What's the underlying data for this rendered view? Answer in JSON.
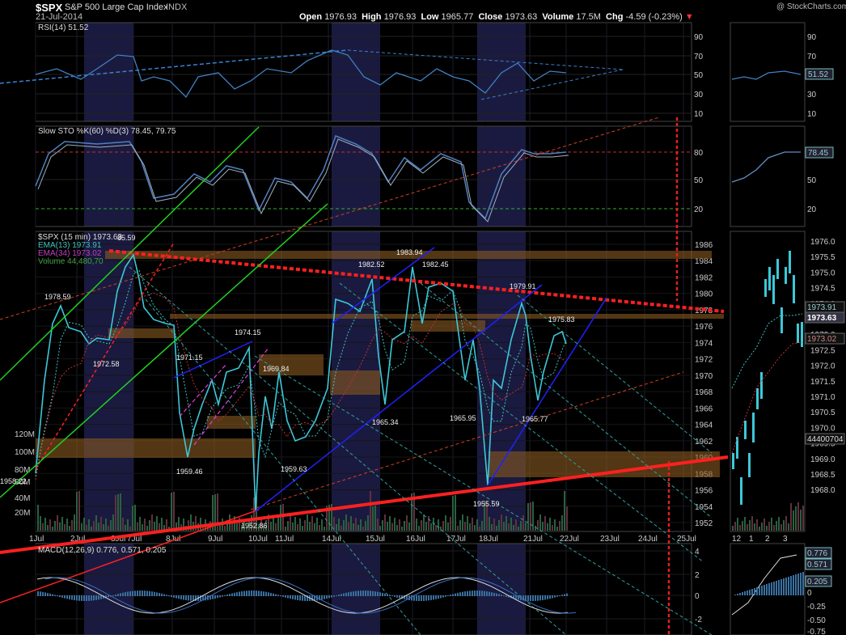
{
  "header": {
    "symbol": "$SPX",
    "name": "S&P 500 Large Cap Index",
    "exchange": "INDX",
    "date": "21-Jul-2014",
    "watermark": "@ StockCharts.com",
    "open_label": "Open",
    "open": "1976.93",
    "high_label": "High",
    "high": "1976.93",
    "low_label": "Low",
    "low": "1965.77",
    "close_label": "Close",
    "close": "1973.63",
    "volume_label": "Volume",
    "volume": "17.5M",
    "chg_label": "Chg",
    "chg": "-4.59 (-0.23%)"
  },
  "colors": {
    "price": "#3cc8d8",
    "ema13": "#40c0c0",
    "ema34": "#c03030",
    "trend_red": "#ff2020",
    "channel_green": "#20d020",
    "channel_blue": "#2020ff",
    "flag_magenta": "#e040e0",
    "resistance_band": "#8a5a20",
    "shade": "#1a1a40"
  },
  "panels": {
    "rsi": {
      "label": "RSI(14) 51.52",
      "ticks": [
        "90",
        "70",
        "50",
        "30",
        "10"
      ],
      "mini_value": "51.52"
    },
    "sto": {
      "label": "Slow STO %K(60) %D(3) 78.45, 79.75",
      "ticks": [
        "80",
        "50",
        "20"
      ],
      "mini_value": "78.45"
    },
    "price": {
      "legend": [
        "$SPX (15 min) 1973.63",
        "EMA(13) 1973.91",
        "EMA(34) 1973.02",
        "Volume 44,480,70"
      ],
      "ticks": [
        "1986",
        "1984",
        "1982",
        "1980",
        "1978",
        "1976",
        "1974",
        "1972",
        "1970",
        "1968",
        "1966",
        "1964",
        "1962",
        "1960",
        "1958",
        "1956",
        "1954",
        "1952"
      ],
      "volume_ticks": [
        "120M",
        "100M",
        "80M",
        "60M",
        "40M",
        "20M"
      ],
      "mini_ticks": [
        "1976.0",
        "1975.5",
        "1975.0",
        "1974.5",
        "1974.0",
        "1973.5",
        "1973.0",
        "1972.5",
        "1972.0",
        "1971.5",
        "1971.0",
        "1970.5",
        "1970.0",
        "1969.5",
        "1969.0",
        "1968.5",
        "1968.0"
      ],
      "mini_badges": {
        "ema13": "1973.91",
        "close": "1973.63",
        "ema34": "1973.02",
        "volume": "44400704"
      },
      "x_labels": [
        "1Jul",
        "2Jul",
        "3Jul",
        "7Jul",
        "8Jul",
        "9Jul",
        "10Jul",
        "11Jul",
        "14Jul",
        "15Jul",
        "16Jul",
        "17Jul",
        "18Jul",
        "21Jul",
        "22Jul",
        "23Jul",
        "24Jul",
        "25Jul"
      ],
      "mini_x_labels": [
        "12",
        "1",
        "2",
        "3"
      ],
      "annotations": [
        "1978.59",
        "1972.58",
        "85.59",
        "1971.15",
        "1974.15",
        "1959.46",
        "1952.86",
        "1969.84",
        "1959.63",
        "1982.52",
        "1983.94",
        "1982.45",
        "1965.34",
        "1965.95",
        "1955.59",
        "1979.91",
        "1975.83",
        "1965.77",
        "1958.22"
      ]
    },
    "macd": {
      "label": "MACD(12,26,9) 0.776, 0.571, 0.205",
      "ticks": [
        "4",
        "2",
        "0",
        "-2"
      ],
      "mini_ticks": [
        "0.776",
        "0.571",
        "0.205",
        "0",
        "-0.25",
        "-0.50",
        "-0.75"
      ]
    }
  },
  "chart_data": {
    "type": "line",
    "title": "$SPX S&P 500 Large Cap Index INDX",
    "interval": "15 min",
    "ylim": [
      1951,
      1987
    ],
    "series": [
      {
        "name": "$SPX (15 min)",
        "points": [
          [
            "1Jul",
            1958.22
          ],
          [
            "1Jul",
            1978.59
          ],
          [
            "2Jul",
            1972.58
          ],
          [
            "3Jul",
            1985.59
          ],
          [
            "7Jul",
            1976.0
          ],
          [
            "8Jul",
            1959.46
          ],
          [
            "9Jul",
            1971.15
          ],
          [
            "9Jul",
            1974.15
          ],
          [
            "10Jul",
            1952.86
          ],
          [
            "10Jul",
            1969.84
          ],
          [
            "11Jul",
            1959.63
          ],
          [
            "14Jul",
            1979.0
          ],
          [
            "15Jul",
            1982.52
          ],
          [
            "15Jul",
            1965.34
          ],
          [
            "16Jul",
            1983.94
          ],
          [
            "17Jul",
            1982.45
          ],
          [
            "17Jul",
            1965.95
          ],
          [
            "18Jul",
            1955.59
          ],
          [
            "18Jul",
            1979.91
          ],
          [
            "21Jul",
            1965.77
          ],
          [
            "21Jul",
            1975.83
          ],
          [
            "21Jul",
            1973.63
          ]
        ]
      }
    ]
  }
}
